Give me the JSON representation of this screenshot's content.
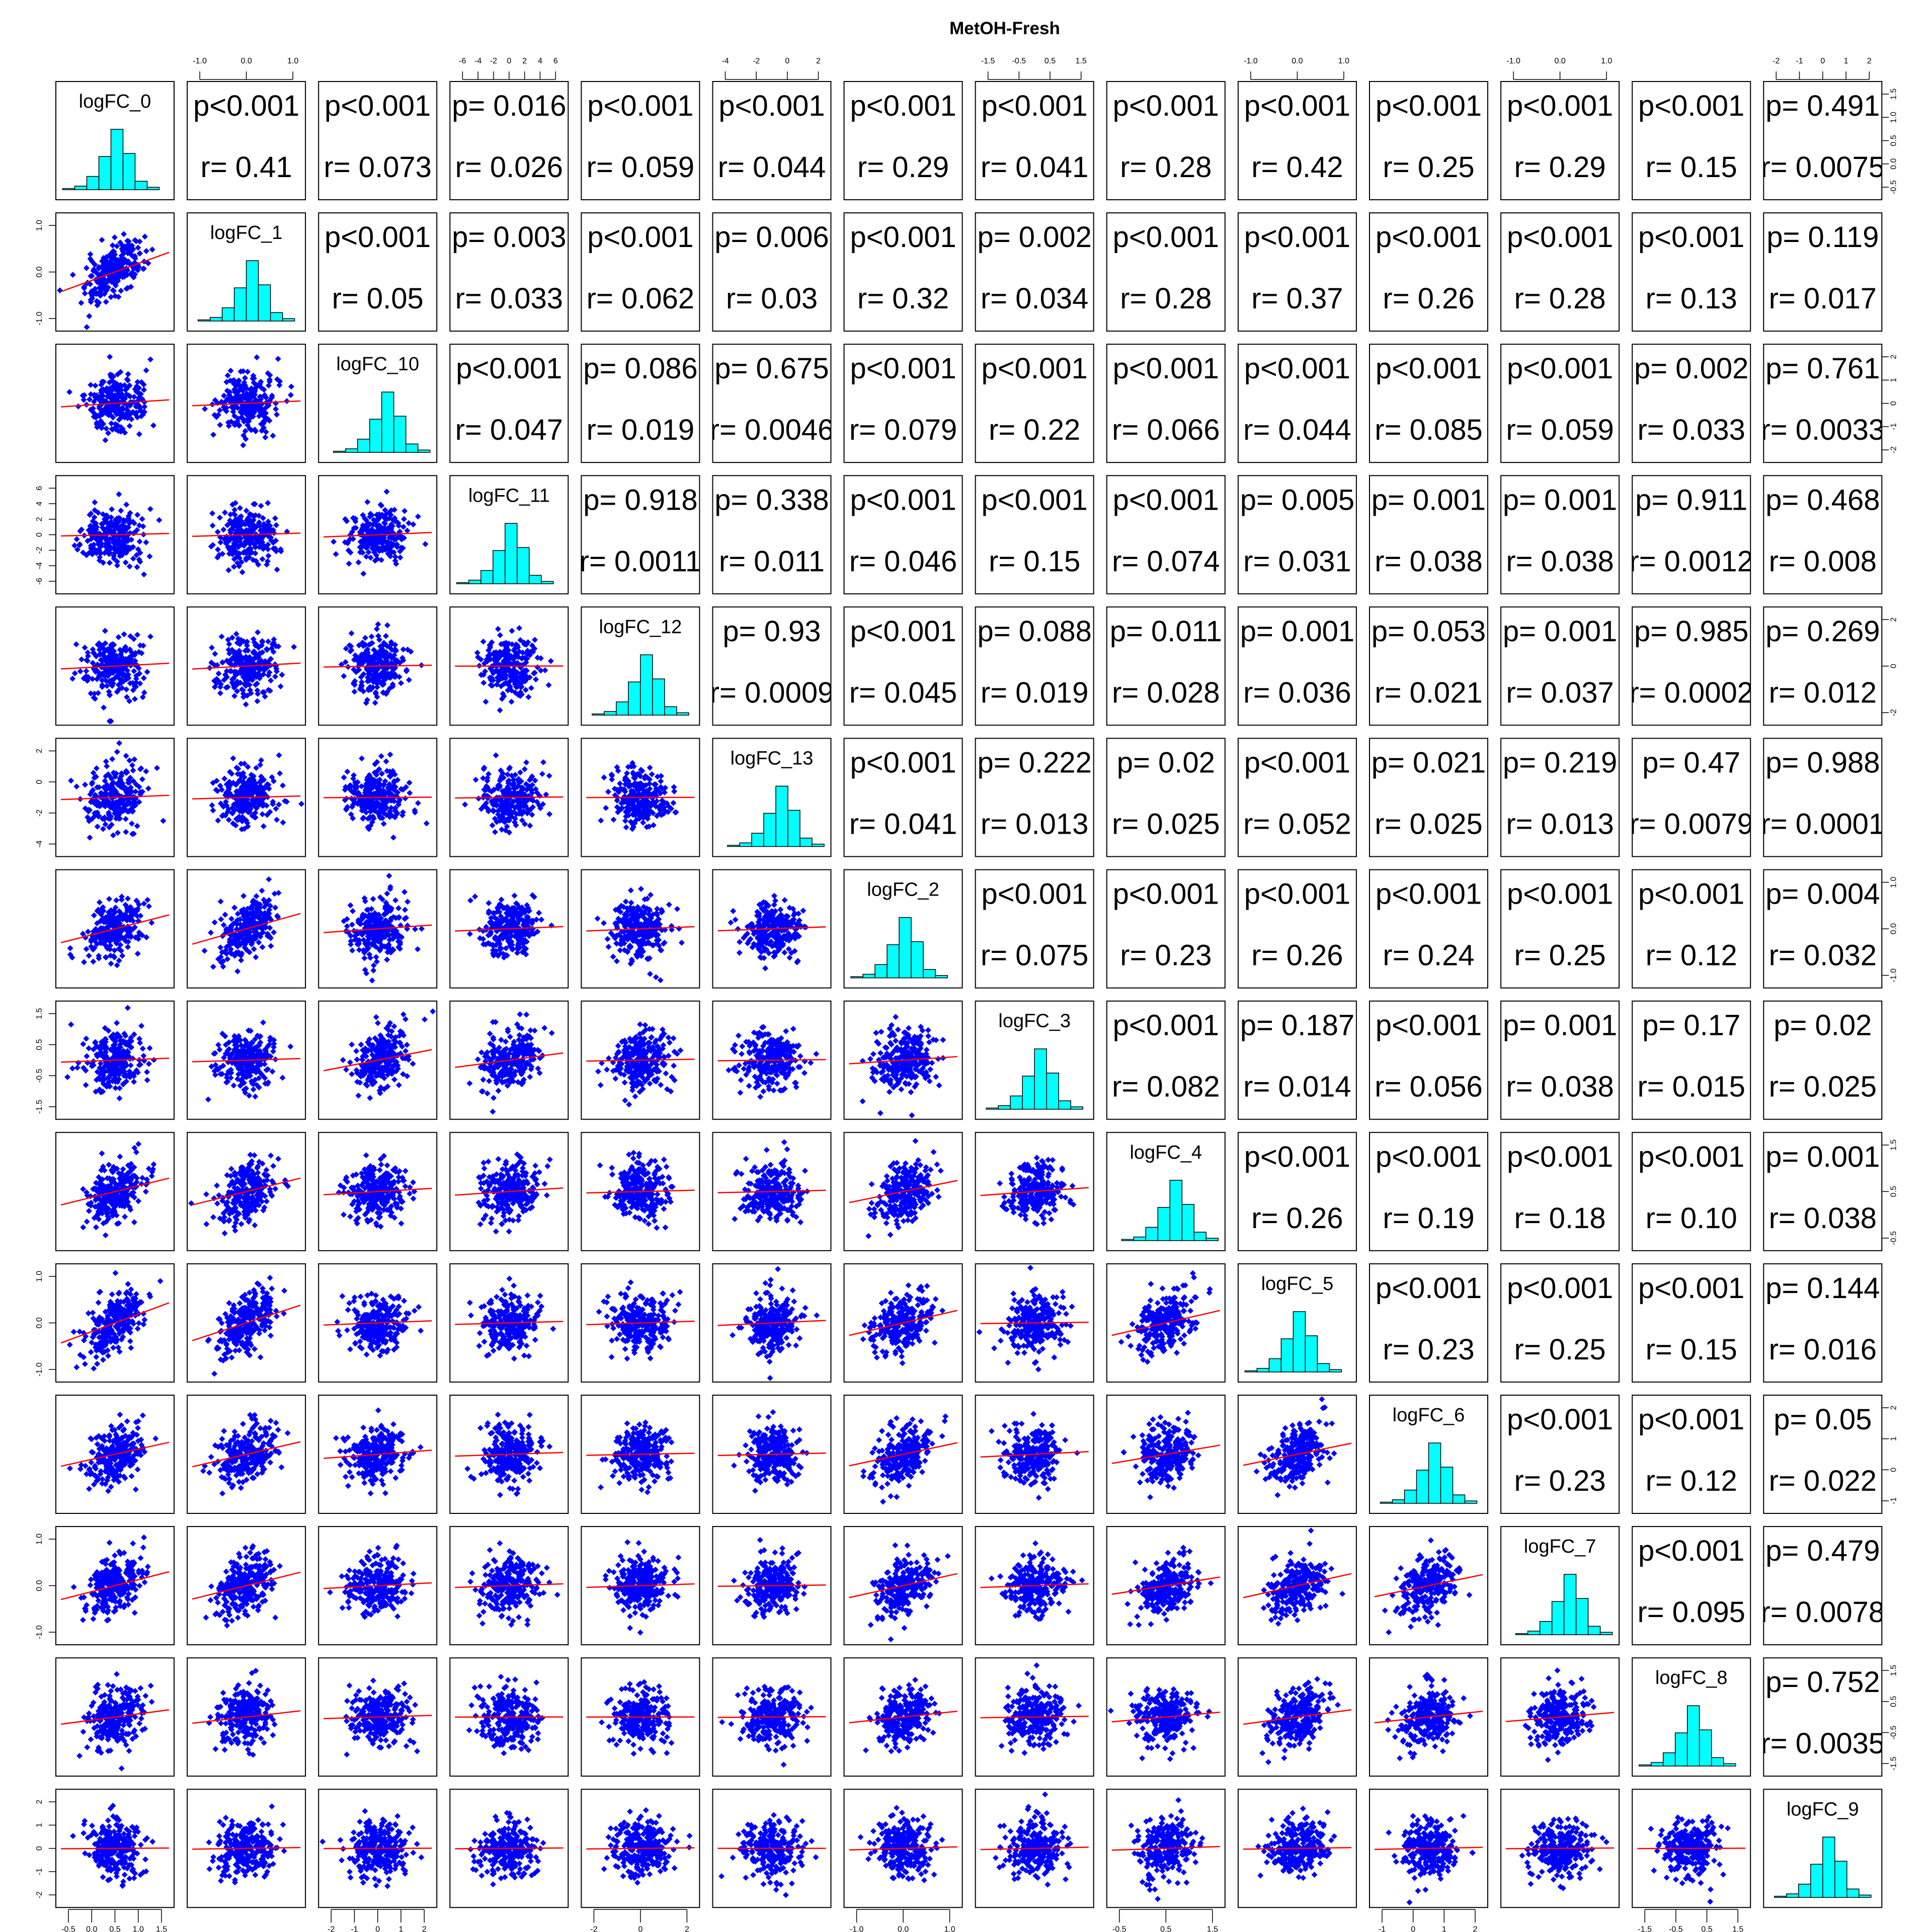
{
  "chart_data": {
    "type": "scatter-matrix",
    "title": "MetOH-Fresh",
    "variables": [
      "logFC_0",
      "logFC_1",
      "logFC_10",
      "logFC_11",
      "logFC_12",
      "logFC_13",
      "logFC_2",
      "logFC_3",
      "logFC_4",
      "logFC_5",
      "logFC_6",
      "logFC_7",
      "logFC_8",
      "logFC_9"
    ],
    "axis_ticks": [
      {
        "variable": "logFC_0",
        "ticks": [
          "-0.5",
          "0.0",
          "0.5",
          "1.0",
          "1.5"
        ]
      },
      {
        "variable": "logFC_1",
        "ticks": [
          "-1.0",
          "0.0",
          "1.0"
        ]
      },
      {
        "variable": "logFC_10",
        "ticks": [
          "-2",
          "-1",
          "0",
          "1",
          "2"
        ]
      },
      {
        "variable": "logFC_11",
        "ticks": [
          "-6",
          "-4",
          "-2",
          "0",
          "2",
          "4",
          "6"
        ]
      },
      {
        "variable": "logFC_12",
        "ticks": [
          "-2",
          "0",
          "2"
        ]
      },
      {
        "variable": "logFC_13",
        "ticks": [
          "-4",
          "-2",
          "0",
          "2"
        ]
      },
      {
        "variable": "logFC_2",
        "ticks": [
          "-1.0",
          "0.0",
          "1.0"
        ]
      },
      {
        "variable": "logFC_3",
        "ticks": [
          "-1.5",
          "-0.5",
          "0.5",
          "1.5"
        ]
      },
      {
        "variable": "logFC_4",
        "ticks": [
          "-0.5",
          "0.5",
          "1.5"
        ]
      },
      {
        "variable": "logFC_5",
        "ticks": [
          "-1.0",
          "0.0",
          "1.0"
        ]
      },
      {
        "variable": "logFC_6",
        "ticks": [
          "-1",
          "0",
          "1",
          "2"
        ]
      },
      {
        "variable": "logFC_7",
        "ticks": [
          "-1.0",
          "0.0",
          "1.0"
        ]
      },
      {
        "variable": "logFC_8",
        "ticks": [
          "-1.5",
          "-0.5",
          "0.5",
          "1.5"
        ]
      },
      {
        "variable": "logFC_9",
        "ticks": [
          "-2",
          "-1",
          "0",
          "1",
          "2"
        ]
      }
    ],
    "upper_p": [
      [
        null,
        "p<0.001",
        "p<0.001",
        "p= 0.016",
        "p<0.001",
        "p<0.001",
        "p<0.001",
        "p<0.001",
        "p<0.001",
        "p<0.001",
        "p<0.001",
        "p<0.001",
        "p<0.001",
        "p= 0.491"
      ],
      [
        null,
        null,
        "p<0.001",
        "p= 0.003",
        "p<0.001",
        "p= 0.006",
        "p<0.001",
        "p= 0.002",
        "p<0.001",
        "p<0.001",
        "p<0.001",
        "p<0.001",
        "p<0.001",
        "p= 0.119"
      ],
      [
        null,
        null,
        null,
        "p<0.001",
        "p= 0.086",
        "p= 0.675",
        "p<0.001",
        "p<0.001",
        "p<0.001",
        "p<0.001",
        "p<0.001",
        "p<0.001",
        "p= 0.002",
        "p= 0.761"
      ],
      [
        null,
        null,
        null,
        null,
        "p= 0.918",
        "p= 0.338",
        "p<0.001",
        "p<0.001",
        "p<0.001",
        "p= 0.005",
        "p= 0.001",
        "p= 0.001",
        "p= 0.911",
        "p= 0.468"
      ],
      [
        null,
        null,
        null,
        null,
        null,
        "p= 0.93",
        "p<0.001",
        "p= 0.088",
        "p= 0.011",
        "p= 0.001",
        "p= 0.053",
        "p= 0.001",
        "p= 0.985",
        "p= 0.269"
      ],
      [
        null,
        null,
        null,
        null,
        null,
        null,
        "p<0.001",
        "p= 0.222",
        "p= 0.02",
        "p<0.001",
        "p= 0.021",
        "p= 0.219",
        "p= 0.47",
        "p= 0.988"
      ],
      [
        null,
        null,
        null,
        null,
        null,
        null,
        null,
        "p<0.001",
        "p<0.001",
        "p<0.001",
        "p<0.001",
        "p<0.001",
        "p<0.001",
        "p= 0.004"
      ],
      [
        null,
        null,
        null,
        null,
        null,
        null,
        null,
        null,
        "p<0.001",
        "p= 0.187",
        "p<0.001",
        "p= 0.001",
        "p= 0.17",
        "p= 0.02"
      ],
      [
        null,
        null,
        null,
        null,
        null,
        null,
        null,
        null,
        null,
        "p<0.001",
        "p<0.001",
        "p<0.001",
        "p<0.001",
        "p= 0.001"
      ],
      [
        null,
        null,
        null,
        null,
        null,
        null,
        null,
        null,
        null,
        null,
        "p<0.001",
        "p<0.001",
        "p<0.001",
        "p= 0.144"
      ],
      [
        null,
        null,
        null,
        null,
        null,
        null,
        null,
        null,
        null,
        null,
        null,
        "p<0.001",
        "p<0.001",
        "p= 0.05"
      ],
      [
        null,
        null,
        null,
        null,
        null,
        null,
        null,
        null,
        null,
        null,
        null,
        null,
        "p<0.001",
        "p= 0.479"
      ],
      [
        null,
        null,
        null,
        null,
        null,
        null,
        null,
        null,
        null,
        null,
        null,
        null,
        null,
        "p= 0.752"
      ],
      [
        null,
        null,
        null,
        null,
        null,
        null,
        null,
        null,
        null,
        null,
        null,
        null,
        null,
        null
      ]
    ],
    "upper_r": [
      [
        null,
        "r= 0.41",
        "r= 0.073",
        "r= 0.026",
        "r= 0.059",
        "r= 0.044",
        "r= 0.29",
        "r= 0.041",
        "r= 0.28",
        "r= 0.42",
        "r= 0.25",
        "r= 0.29",
        "r= 0.15",
        "r= 0.0075"
      ],
      [
        null,
        null,
        "r= 0.05",
        "r= 0.033",
        "r= 0.062",
        "r= 0.03",
        "r= 0.32",
        "r= 0.034",
        "r= 0.28",
        "r= 0.37",
        "r= 0.26",
        "r= 0.28",
        "r= 0.13",
        "r= 0.017"
      ],
      [
        null,
        null,
        null,
        "r= 0.047",
        "r= 0.019",
        "r= 0.0046",
        "r= 0.079",
        "r= 0.22",
        "r= 0.066",
        "r= 0.044",
        "r= 0.085",
        "r= 0.059",
        "r= 0.033",
        "r= 0.0033"
      ],
      [
        null,
        null,
        null,
        null,
        "r= 0.0011",
        "r= 0.011",
        "r= 0.046",
        "r= 0.15",
        "r= 0.074",
        "r= 0.031",
        "r= 0.038",
        "r= 0.038",
        "r= 0.0012",
        "r= 0.008"
      ],
      [
        null,
        null,
        null,
        null,
        null,
        "r= 0.0009",
        "r= 0.045",
        "r= 0.019",
        "r= 0.028",
        "r= 0.036",
        "r= 0.021",
        "r= 0.037",
        "r= 0.0002",
        "r= 0.012"
      ],
      [
        null,
        null,
        null,
        null,
        null,
        null,
        "r= 0.041",
        "r= 0.013",
        "r= 0.025",
        "r= 0.052",
        "r= 0.025",
        "r= 0.013",
        "r= 0.0079",
        "r= 0.0001"
      ],
      [
        null,
        null,
        null,
        null,
        null,
        null,
        null,
        "r= 0.075",
        "r= 0.23",
        "r= 0.26",
        "r= 0.24",
        "r= 0.25",
        "r= 0.12",
        "r= 0.032"
      ],
      [
        null,
        null,
        null,
        null,
        null,
        null,
        null,
        null,
        "r= 0.082",
        "r= 0.014",
        "r= 0.056",
        "r= 0.038",
        "r= 0.015",
        "r= 0.025"
      ],
      [
        null,
        null,
        null,
        null,
        null,
        null,
        null,
        null,
        null,
        "r= 0.26",
        "r= 0.19",
        "r= 0.18",
        "r= 0.10",
        "r= 0.038"
      ],
      [
        null,
        null,
        null,
        null,
        null,
        null,
        null,
        null,
        null,
        null,
        "r= 0.23",
        "r= 0.25",
        "r= 0.15",
        "r= 0.016"
      ],
      [
        null,
        null,
        null,
        null,
        null,
        null,
        null,
        null,
        null,
        null,
        null,
        "r= 0.23",
        "r= 0.12",
        "r= 0.022"
      ],
      [
        null,
        null,
        null,
        null,
        null,
        null,
        null,
        null,
        null,
        null,
        null,
        null,
        "r= 0.095",
        "r= 0.0078"
      ],
      [
        null,
        null,
        null,
        null,
        null,
        null,
        null,
        null,
        null,
        null,
        null,
        null,
        null,
        "r= 0.0035"
      ],
      [
        null,
        null,
        null,
        null,
        null,
        null,
        null,
        null,
        null,
        null,
        null,
        null,
        null,
        null
      ]
    ],
    "point_color": "#0000ff",
    "smooth_color": "#ff0000",
    "histogram_color": "#00ffff",
    "grid": false
  }
}
